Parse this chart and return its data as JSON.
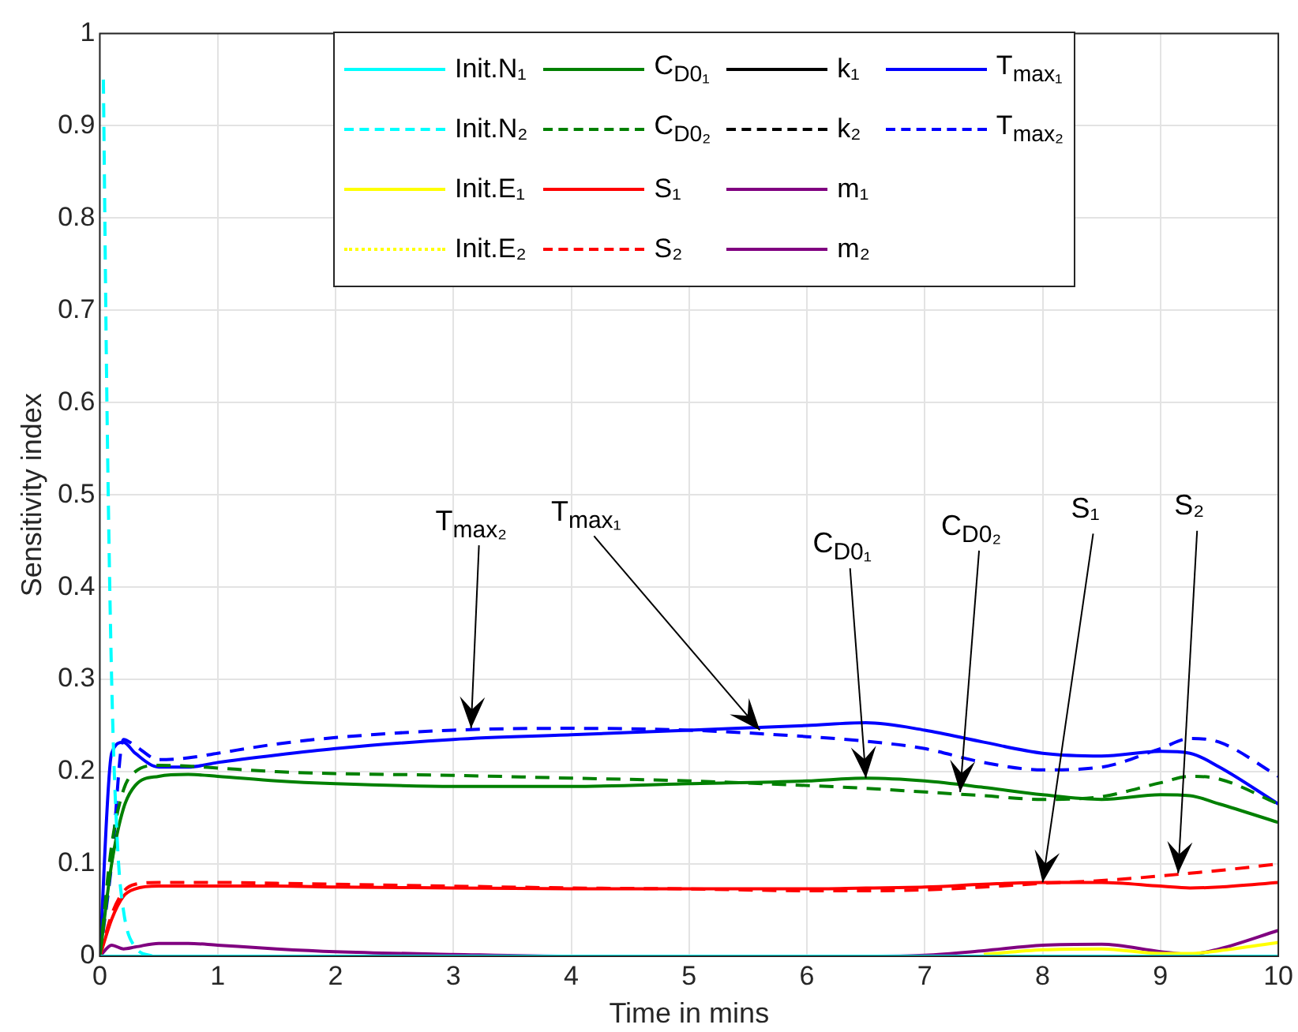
{
  "chart_data": {
    "type": "line",
    "xlabel": "Time in mins",
    "ylabel": "Sensitivity index",
    "x": [
      0,
      0.1,
      0.2,
      0.3,
      0.5,
      0.75,
      1,
      1.5,
      2,
      3,
      4,
      5,
      6,
      6.5,
      7,
      7.5,
      8,
      8.5,
      9,
      9.25,
      9.5,
      10
    ],
    "xlim": [
      0,
      10
    ],
    "xticks": [
      0,
      1,
      2,
      3,
      4,
      5,
      6,
      7,
      8,
      9,
      10
    ],
    "ylim": [
      0,
      1
    ],
    "yticks": [
      0,
      0.1,
      0.2,
      0.3,
      0.4,
      0.5,
      0.6,
      0.7,
      0.8,
      0.9,
      1
    ],
    "grid": true,
    "legend": "top",
    "marker": "none",
    "series": [
      {
        "name": "Init.N₁",
        "color": "#00ffff",
        "line_style": "solid",
        "x": [
          0,
          10
        ],
        "values": [
          0,
          0
        ]
      },
      {
        "name": "Init.N₂",
        "color": "#00ffff",
        "line_style": "dashed",
        "x": [
          0.03,
          0.06,
          0.1,
          0.15,
          0.2,
          0.3,
          0.45
        ],
        "values": [
          0.95,
          0.6,
          0.3,
          0.12,
          0.05,
          0.01,
          0
        ]
      },
      {
        "name": "Init.E₁",
        "color": "#ffff00",
        "line_style": "solid",
        "values": [
          null,
          null,
          null,
          null,
          null,
          null,
          null,
          null,
          null,
          null,
          null,
          null,
          null,
          null,
          null,
          0.002,
          0.007,
          0.008,
          0.003,
          0.003,
          0.006,
          0.015
        ]
      },
      {
        "name": "Init.E₂",
        "color": "#ffff00",
        "line_style": "dotted",
        "values": [
          null,
          null,
          null,
          null,
          null,
          null,
          null,
          null,
          null,
          null,
          null,
          null,
          null,
          null,
          null,
          null,
          null,
          null,
          null,
          null,
          null,
          null
        ]
      },
      {
        "name": "C$_{D0₁}$",
        "color": "#008000",
        "line_style": "solid",
        "values": [
          0,
          0.1,
          0.16,
          0.185,
          0.195,
          0.197,
          0.195,
          0.19,
          0.187,
          0.184,
          0.184,
          0.187,
          0.19,
          0.193,
          0.19,
          0.183,
          0.175,
          0.17,
          0.175,
          0.174,
          0.165,
          0.145
        ]
      },
      {
        "name": "C$_{D0₂}$",
        "color": "#008000",
        "line_style": "dashed",
        "values": [
          0,
          0.12,
          0.18,
          0.2,
          0.207,
          0.206,
          0.204,
          0.2,
          0.198,
          0.196,
          0.193,
          0.19,
          0.185,
          0.182,
          0.178,
          0.174,
          0.17,
          0.173,
          0.188,
          0.195,
          0.192,
          0.165
        ]
      },
      {
        "name": "S₁",
        "color": "#ff0000",
        "line_style": "solid",
        "values": [
          0,
          0.04,
          0.065,
          0.073,
          0.076,
          0.076,
          0.076,
          0.076,
          0.075,
          0.074,
          0.073,
          0.073,
          0.073,
          0.074,
          0.075,
          0.078,
          0.08,
          0.08,
          0.076,
          0.074,
          0.075,
          0.08
        ]
      },
      {
        "name": "S₂",
        "color": "#ff0000",
        "line_style": "dashed",
        "values": [
          0,
          0.045,
          0.07,
          0.078,
          0.08,
          0.08,
          0.08,
          0.079,
          0.078,
          0.076,
          0.074,
          0.073,
          0.071,
          0.071,
          0.072,
          0.075,
          0.079,
          0.082,
          0.087,
          0.09,
          0.093,
          0.1
        ]
      },
      {
        "name": "k₁",
        "color": "#000000",
        "line_style": "solid",
        "values": [
          null,
          null,
          null,
          null,
          null,
          null,
          null,
          null,
          null,
          null,
          null,
          null,
          null,
          null,
          null,
          null,
          null,
          null,
          null,
          null,
          null,
          null
        ]
      },
      {
        "name": "k₂",
        "color": "#000000",
        "line_style": "dashed",
        "values": [
          null,
          null,
          null,
          null,
          null,
          null,
          null,
          null,
          null,
          null,
          null,
          null,
          null,
          null,
          null,
          null,
          null,
          null,
          null,
          null,
          null,
          null
        ]
      },
      {
        "name": "m₁",
        "color": "#800080",
        "line_style": "solid",
        "values": [
          0,
          0.012,
          0.008,
          0.01,
          0.014,
          0.014,
          0.012,
          0.008,
          0.005,
          0.002,
          0,
          0,
          0,
          0,
          0.001,
          0.006,
          0.012,
          0.013,
          0.005,
          0.002,
          0.008,
          0.028
        ]
      },
      {
        "name": "m₂",
        "color": "#800080",
        "line_style": "solid",
        "values": [
          null,
          null,
          null,
          null,
          null,
          null,
          null,
          null,
          null,
          null,
          null,
          null,
          null,
          null,
          null,
          null,
          null,
          null,
          null,
          null,
          null,
          null
        ]
      },
      {
        "name": "T$_{max₁}$",
        "color": "#0000ff",
        "line_style": "solid",
        "values": [
          0,
          0.22,
          0.232,
          0.22,
          0.205,
          0.205,
          0.21,
          0.218,
          0.225,
          0.235,
          0.24,
          0.245,
          0.25,
          0.253,
          0.245,
          0.232,
          0.22,
          0.217,
          0.222,
          0.22,
          0.205,
          0.165
        ]
      },
      {
        "name": "T$_{max₂}$",
        "color": "#0000ff",
        "line_style": "dashed",
        "values": [
          0,
          0.1,
          0.235,
          0.228,
          0.213,
          0.215,
          0.22,
          0.23,
          0.237,
          0.245,
          0.247,
          0.245,
          0.238,
          0.233,
          0.225,
          0.21,
          0.202,
          0.205,
          0.225,
          0.236,
          0.232,
          0.195
        ]
      }
    ],
    "annotations": [
      {
        "text": "T$_{max₂}$",
        "x": 3.15,
        "y": 0.247
      },
      {
        "text": "T$_{max₁}$",
        "x": 5.6,
        "y": 0.245
      },
      {
        "text": "C$_{D0₁}$",
        "x": 6.5,
        "y": 0.193
      },
      {
        "text": "C$_{D0₂}$",
        "x": 7.3,
        "y": 0.178
      },
      {
        "text": "S₁",
        "x": 8,
        "y": 0.08
      },
      {
        "text": "S₂",
        "x": 9.15,
        "y": 0.09
      }
    ]
  }
}
